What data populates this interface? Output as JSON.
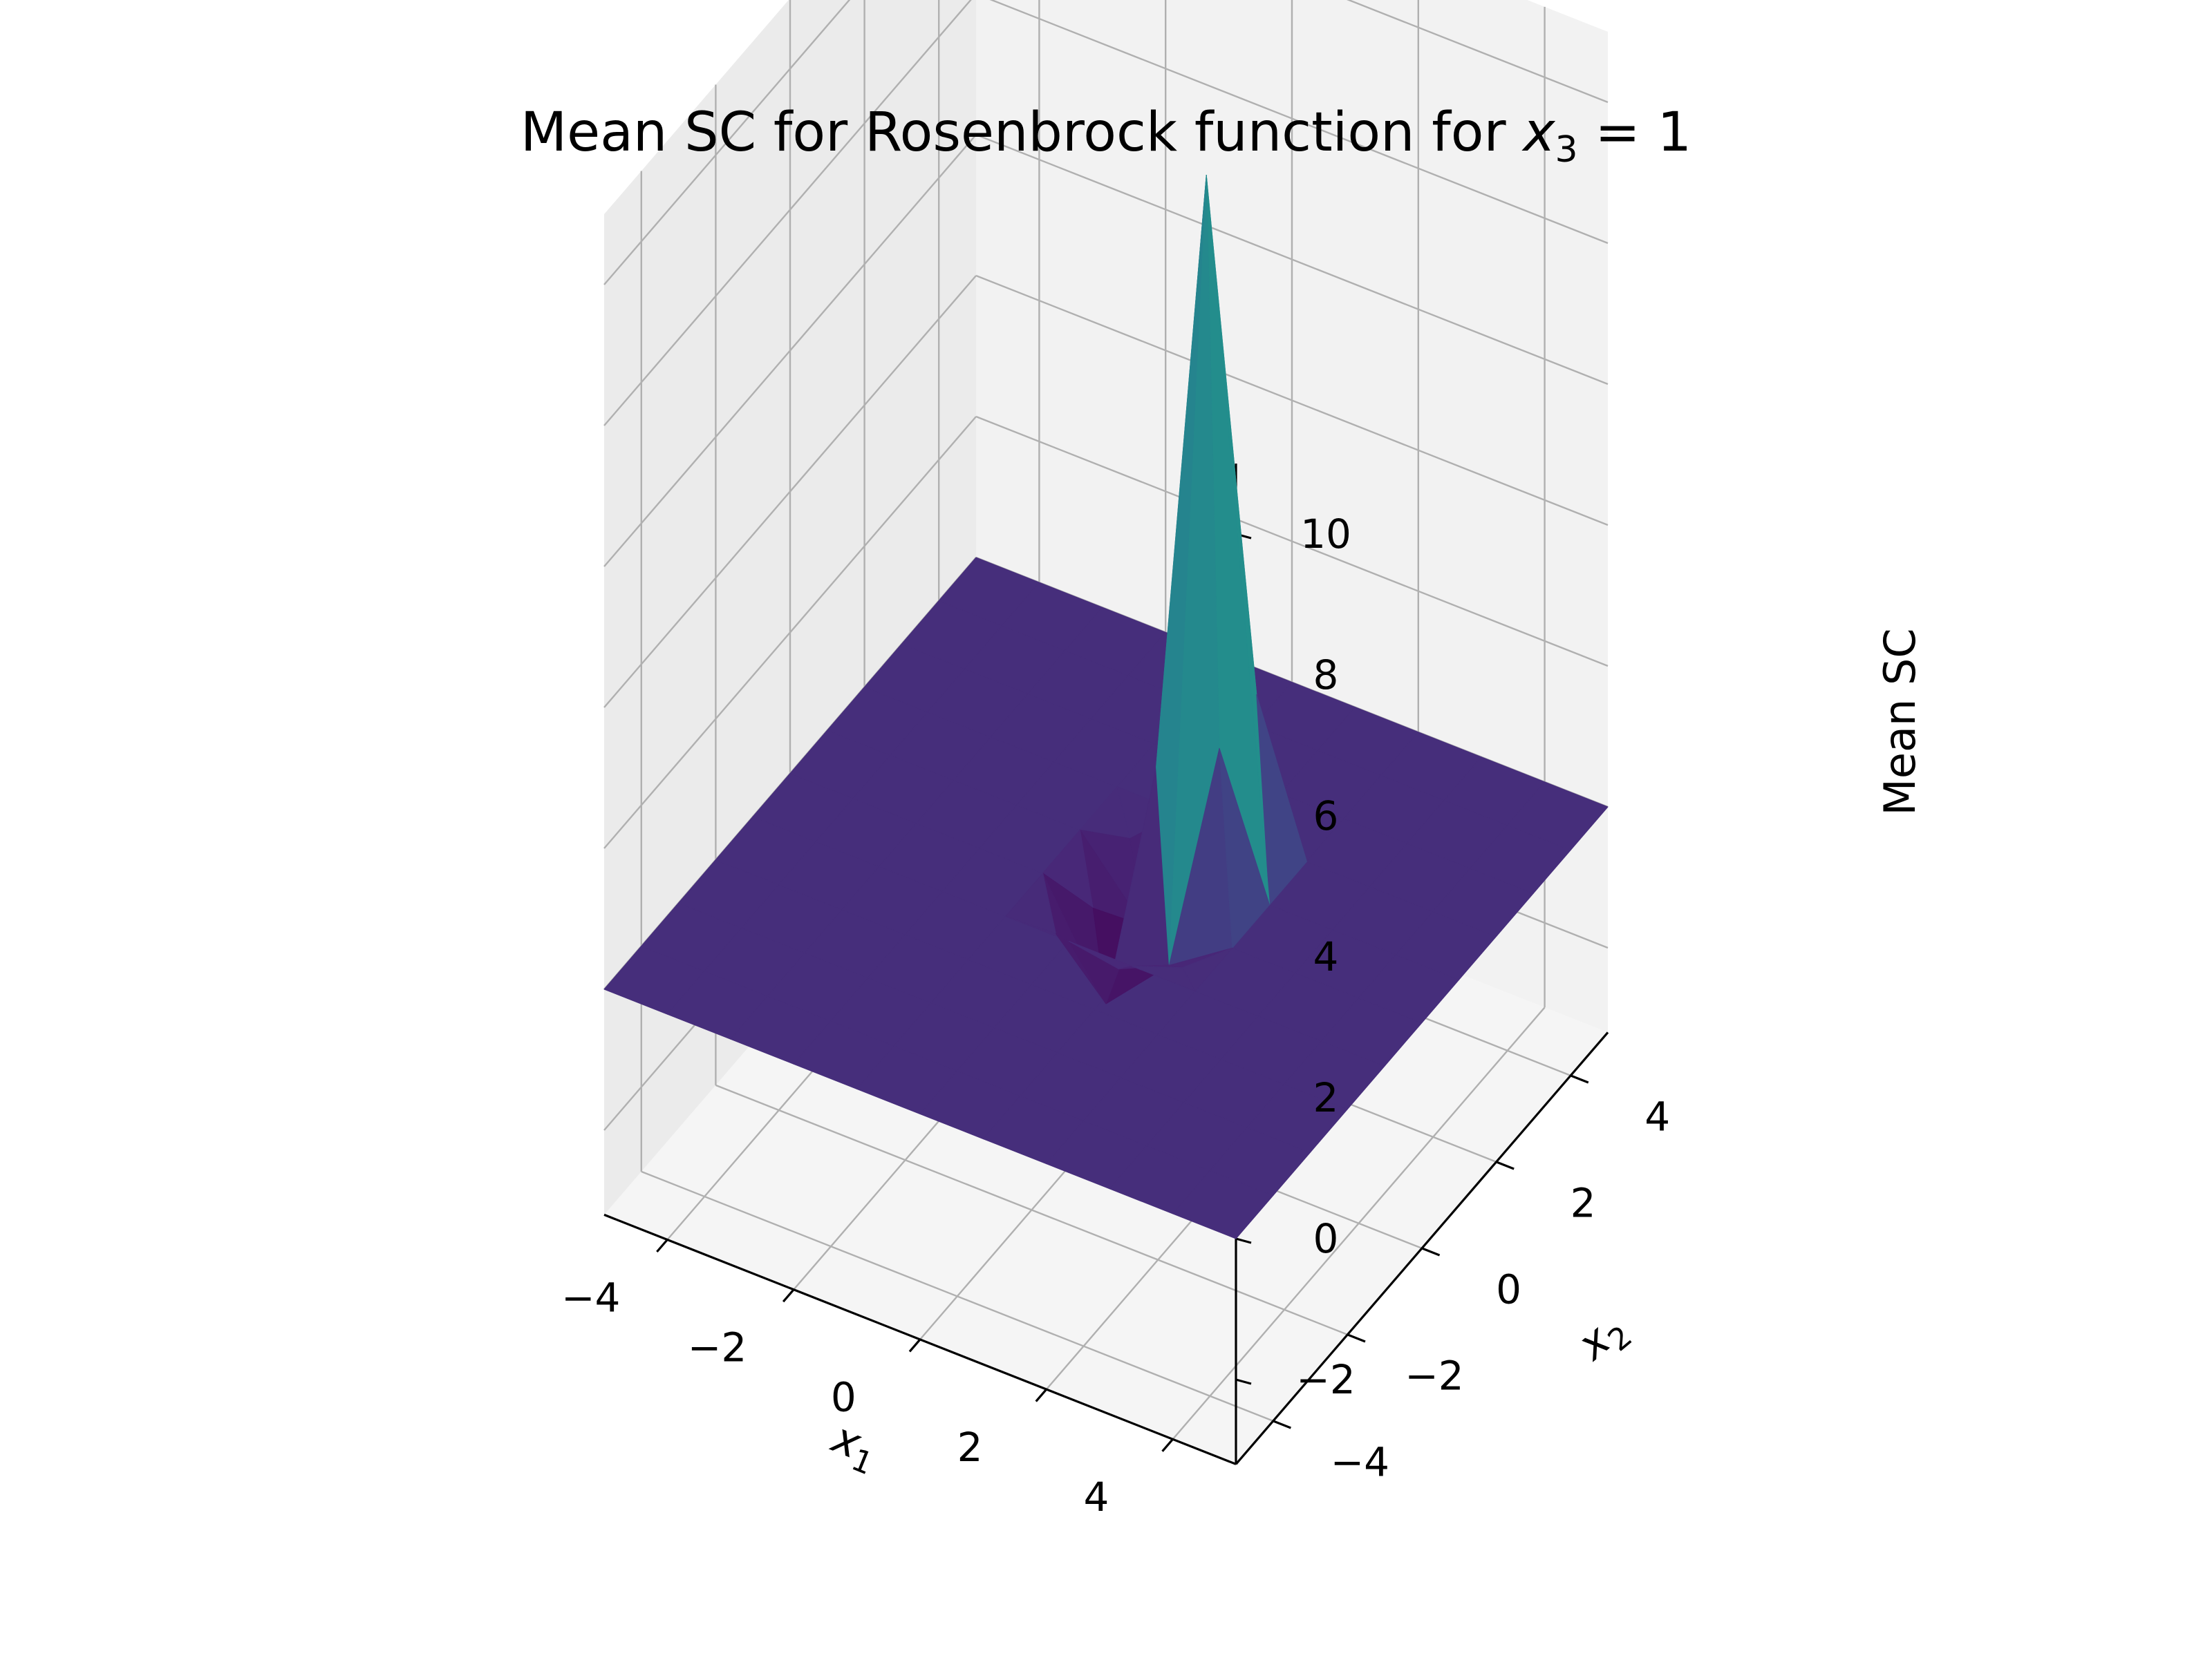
{
  "chart_data": {
    "type": "surface3d",
    "title": {
      "prefix": "Mean SC for Rosenbrock function for ",
      "math_var": "x",
      "math_sub": "3",
      "math_rest": " = 1"
    },
    "xlabel": {
      "var": "x",
      "sub": "1"
    },
    "ylabel": {
      "var": "x",
      "sub": "2"
    },
    "zlabel": "Mean SC",
    "xlim": [
      -5,
      5
    ],
    "ylim": [
      -5,
      5
    ],
    "zlim": [
      -3.2,
      11
    ],
    "x_ticks": [
      -4,
      -2,
      0,
      2,
      4
    ],
    "x_tick_labels": [
      "−4",
      "−2",
      "0",
      "2",
      "4"
    ],
    "y_ticks": [
      -4,
      -2,
      0,
      2,
      4
    ],
    "y_tick_labels": [
      "−4",
      "−2",
      "0",
      "2",
      "4"
    ],
    "z_ticks": [
      -2,
      0,
      2,
      4,
      6,
      8,
      10
    ],
    "z_tick_labels": [
      "−2",
      "0",
      "2",
      "4",
      "6",
      "8",
      "10"
    ],
    "grid": true,
    "colormap": "viridis",
    "grid_x": [
      -5,
      -4,
      -3,
      -2,
      -1,
      0,
      1,
      2,
      3,
      4,
      5
    ],
    "grid_y": [
      -5,
      -4,
      -3,
      -2,
      -1,
      0,
      1,
      2,
      3,
      4,
      5
    ],
    "nonzero_z": [
      {
        "x": 0,
        "y": 0,
        "z": -1.5
      },
      {
        "x": 0,
        "y": 1,
        "z": -1
      },
      {
        "x": 1,
        "y": 0,
        "z": -0.6
      },
      {
        "x": 1,
        "y": 1,
        "z": 10
      }
    ],
    "baseline_z": 0
  },
  "colors": {
    "pane_back": "#f2f2f2",
    "pane_left": "#ebebeb",
    "pane_floor": "#f5f5f5",
    "grid": "#b0b0b0",
    "axis_line": "#000000"
  }
}
